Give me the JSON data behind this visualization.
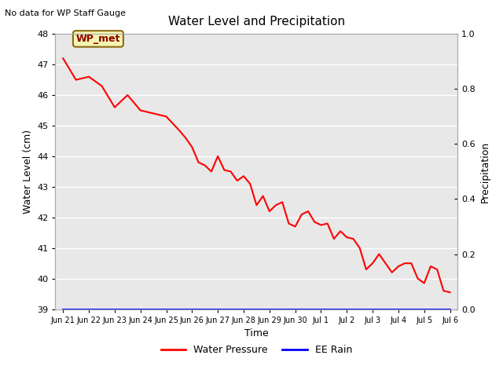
{
  "title": "Water Level and Precipitation",
  "top_left_text": "No data for WP Staff Gauge",
  "xlabel": "Time",
  "ylabel": "Water Level (cm)",
  "ylabel2": "Precipitation",
  "ylim": [
    39.0,
    48.0
  ],
  "ylim2": [
    0.0,
    1.0
  ],
  "yticks": [
    39.0,
    40.0,
    41.0,
    42.0,
    43.0,
    44.0,
    45.0,
    46.0,
    47.0,
    48.0
  ],
  "yticks2": [
    0.0,
    0.2,
    0.4,
    0.6,
    0.8,
    1.0
  ],
  "xtick_labels": [
    "Jun 21",
    "Jun 22",
    "Jun 23",
    "Jun 24",
    "Jun 25",
    "Jun 26",
    "Jun 27",
    "Jun 28",
    "Jun 29",
    "Jun 30",
    "Jul 1",
    "Jul 2",
    "Jul 3",
    "Jul 4",
    "Jul 5",
    "Jul 6"
  ],
  "plot_bg_color": "#e8e8e8",
  "grid_color": "white",
  "line_color": "red",
  "line2_color": "blue",
  "legend_entries": [
    "Water Pressure",
    "EE Rain"
  ],
  "legend_colors": [
    "red",
    "blue"
  ],
  "annotation_text": "WP_met",
  "water_level_x": [
    0,
    0.5,
    1.0,
    1.5,
    2.0,
    2.5,
    3.0,
    3.5,
    4.0,
    4.5,
    4.75,
    5.0,
    5.25,
    5.5,
    5.75,
    6.0,
    6.25,
    6.5,
    6.75,
    7.0,
    7.25,
    7.5,
    7.75,
    8.0,
    8.25,
    8.5,
    8.75,
    9.0,
    9.25,
    9.5,
    9.75,
    10.0,
    10.25,
    10.5,
    10.75,
    11.0,
    11.25,
    11.5,
    11.75,
    12.0,
    12.25,
    12.5,
    12.75,
    13.0,
    13.25,
    13.5,
    13.75,
    14.0,
    14.25,
    14.5,
    14.75,
    15.0
  ],
  "water_level_y": [
    47.2,
    46.5,
    46.6,
    46.3,
    45.6,
    46.0,
    45.5,
    45.4,
    45.3,
    44.85,
    44.6,
    44.3,
    43.8,
    43.7,
    43.5,
    44.0,
    43.55,
    43.5,
    43.2,
    43.35,
    43.1,
    42.4,
    42.7,
    42.2,
    42.4,
    42.5,
    41.8,
    41.7,
    42.1,
    42.2,
    41.85,
    41.75,
    41.8,
    41.3,
    41.55,
    41.35,
    41.3,
    41.0,
    40.3,
    40.5,
    40.8,
    40.5,
    40.2,
    40.4,
    40.5,
    40.5,
    40.0,
    39.85,
    40.4,
    40.3,
    39.6,
    39.55
  ]
}
